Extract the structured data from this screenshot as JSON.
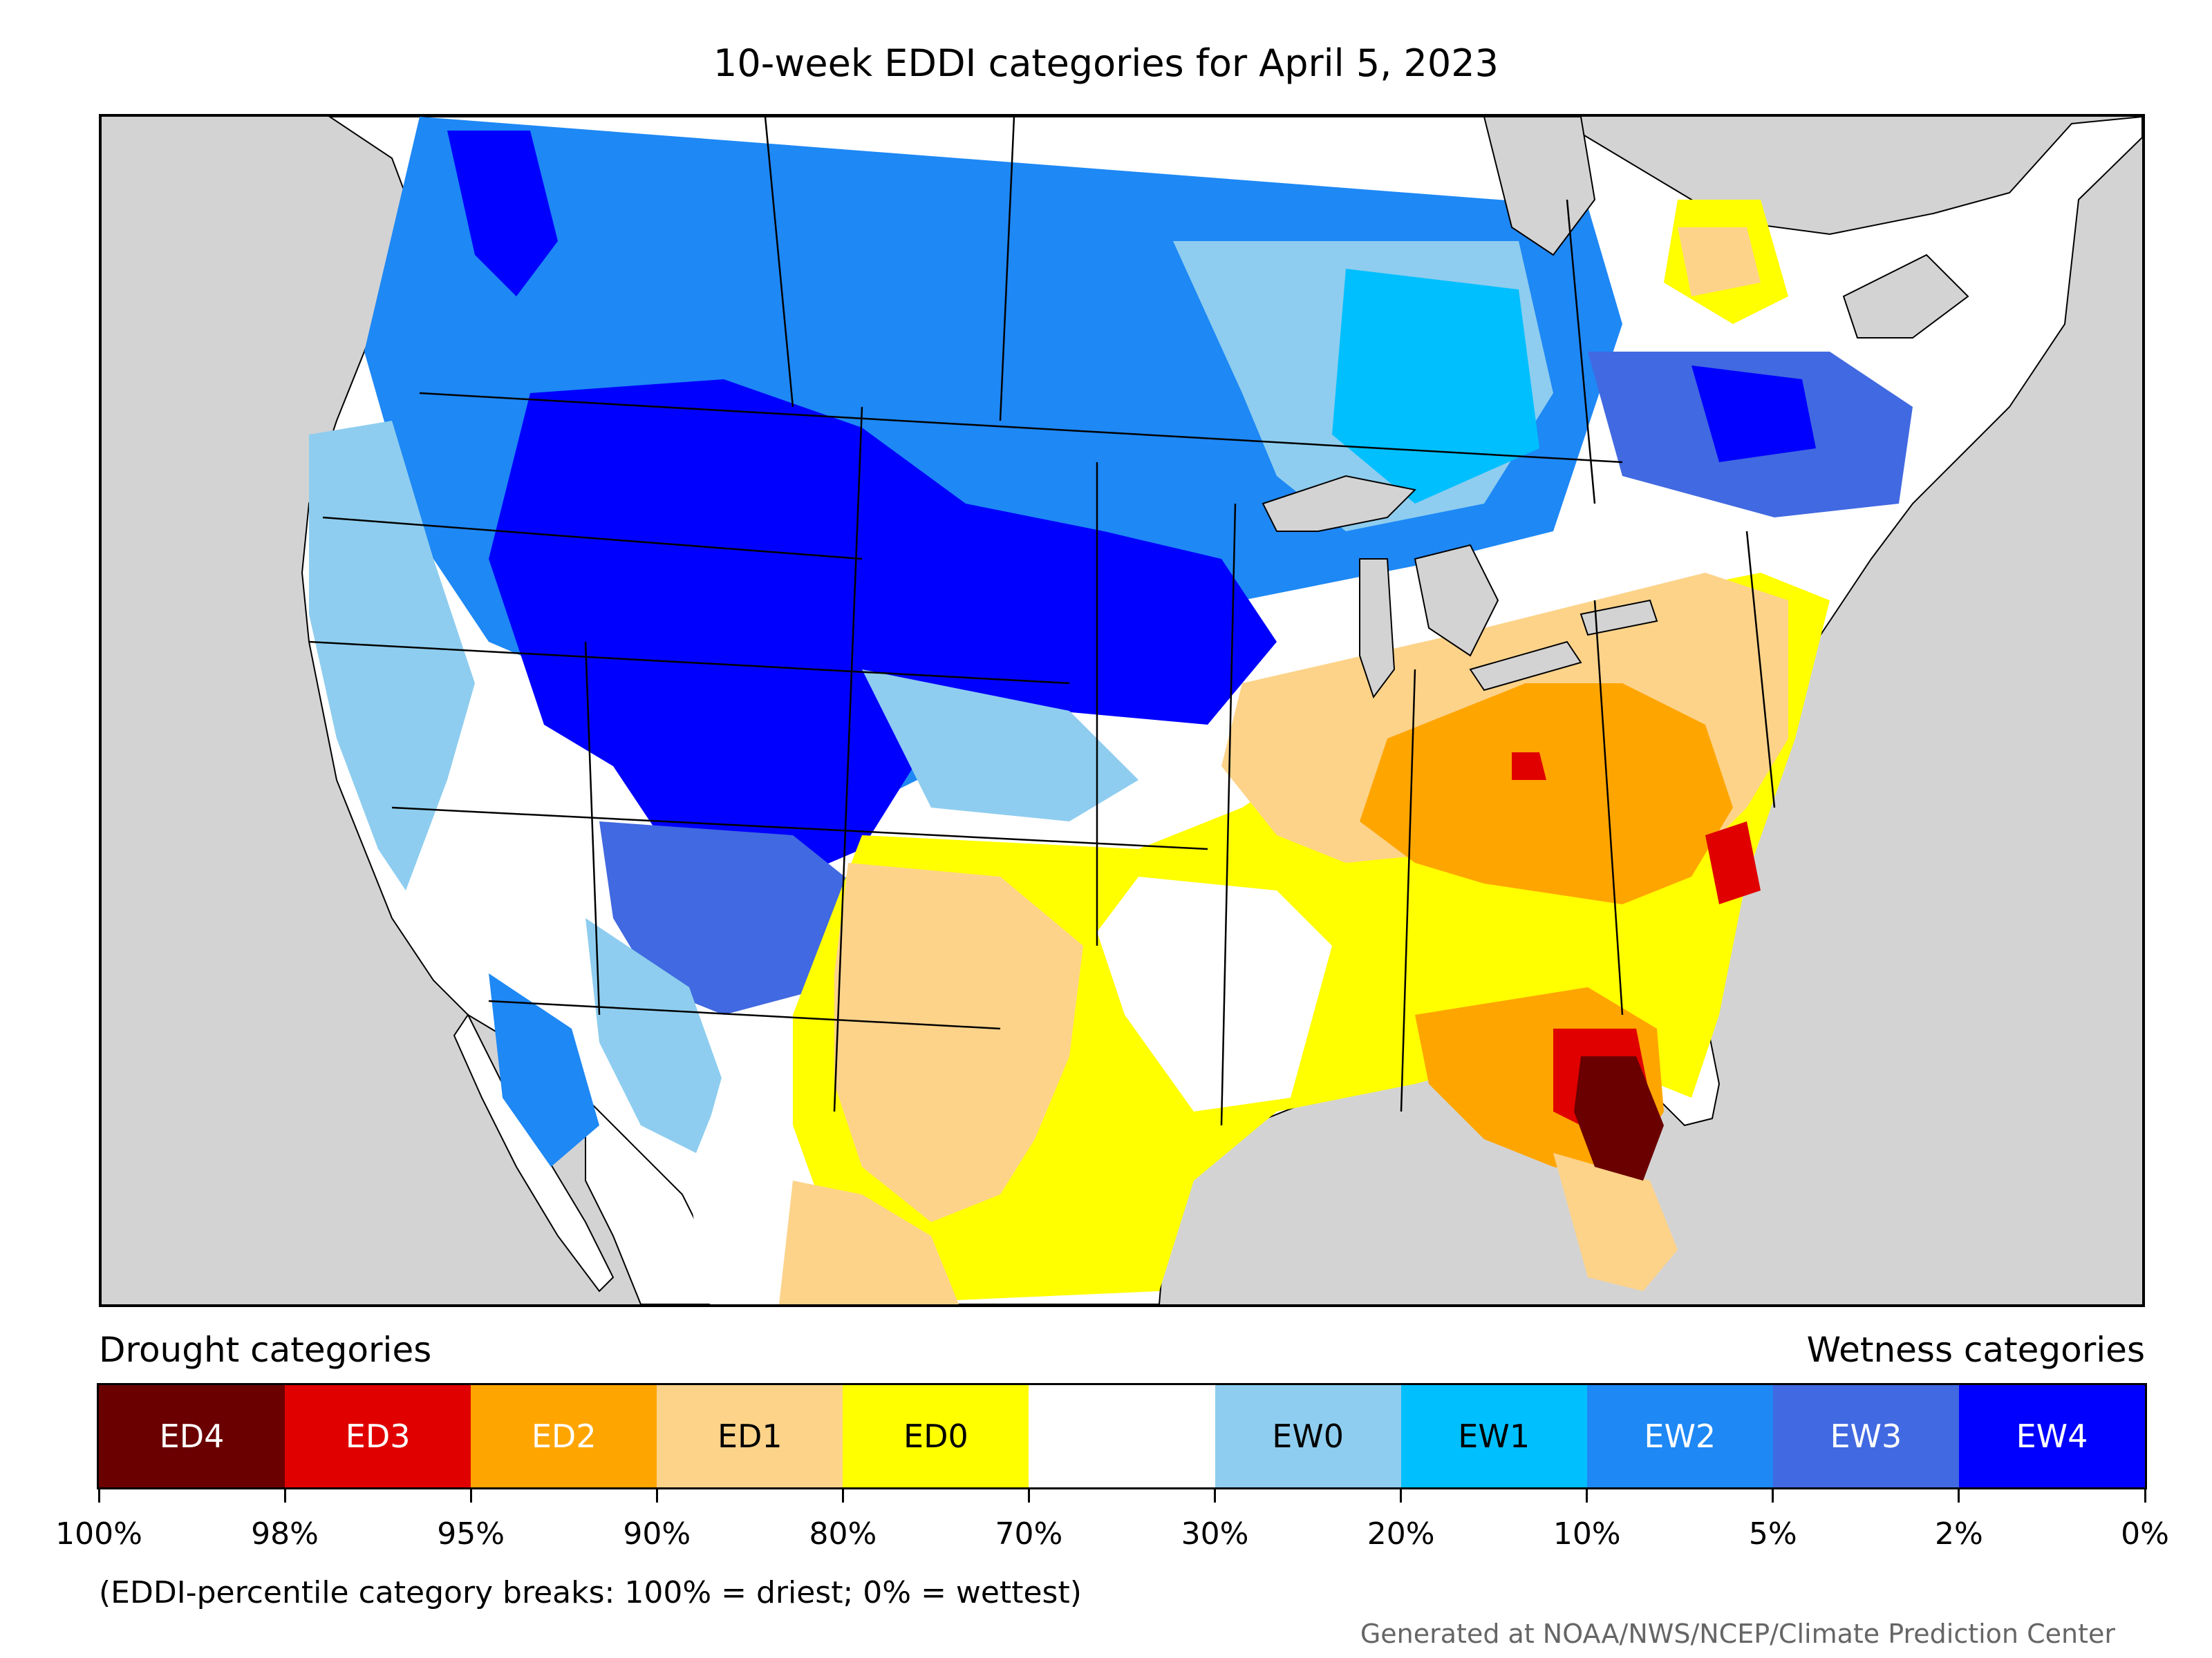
{
  "title": "10-week EDDI categories for April 5, 2023",
  "legend": {
    "drought_heading": "Drought categories",
    "wetness_heading": "Wetness categories",
    "categories": [
      {
        "label": "ED4",
        "color": "#6b0000",
        "text_color": "#ffffff"
      },
      {
        "label": "ED3",
        "color": "#e00000",
        "text_color": "#ffffff"
      },
      {
        "label": "ED2",
        "color": "#ffa500",
        "text_color": "#ffffff"
      },
      {
        "label": "ED1",
        "color": "#fdd38a",
        "text_color": "#000000"
      },
      {
        "label": "ED0",
        "color": "#ffff00",
        "text_color": "#000000"
      },
      {
        "label": "",
        "color": "#ffffff",
        "text_color": "#000000"
      },
      {
        "label": "EW0",
        "color": "#8ecdef",
        "text_color": "#000000"
      },
      {
        "label": "EW1",
        "color": "#00bfff",
        "text_color": "#000000"
      },
      {
        "label": "EW2",
        "color": "#1e88f5",
        "text_color": "#ffffff"
      },
      {
        "label": "EW3",
        "color": "#4169e1",
        "text_color": "#ffffff"
      },
      {
        "label": "EW4",
        "color": "#0000ff",
        "text_color": "#ffffff"
      }
    ],
    "tick_labels": [
      "100%",
      "98%",
      "95%",
      "90%",
      "80%",
      "70%",
      "30%",
      "20%",
      "10%",
      "5%",
      "2%",
      "0%"
    ]
  },
  "note": "(EDDI-percentile category breaks: 100% = driest; 0% = wettest)",
  "credit": "Generated at NOAA/NWS/NCEP/Climate Prediction Center",
  "map_colors": {
    "background": "#d3d3d3",
    "land": "#ffffff",
    "boundary": "#000000"
  }
}
